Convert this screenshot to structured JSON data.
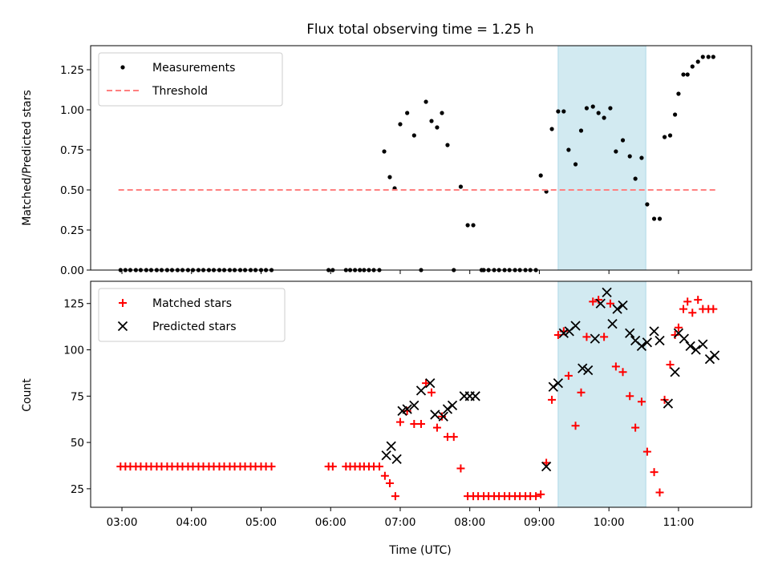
{
  "chart_data": {
    "title": "Flux total observing time = 1.25 h",
    "xlabel": "Time (UTC)",
    "x_ticks": [
      "03:00",
      "04:00",
      "05:00",
      "06:00",
      "07:00",
      "08:00",
      "09:00",
      "10:00",
      "11:00"
    ],
    "x_range_hours": [
      2.55,
      12.05
    ],
    "observing_window_hours": [
      9.27,
      10.53
    ],
    "window_color": "#add8e6",
    "panels": [
      {
        "type": "scatter",
        "ylabel": "Matched/Predicted stars",
        "ylim": [
          0,
          1.4
        ],
        "y_ticks": [
          "0.00",
          "0.25",
          "0.50",
          "0.75",
          "1.00",
          "1.25"
        ],
        "legend": {
          "position": "top-left",
          "entries": [
            "Measurements",
            "Threshold"
          ]
        },
        "series": [
          {
            "name": "Measurements",
            "marker": "dot",
            "color": "#000000",
            "x": [
              2.98,
              3.05,
              3.12,
              3.2,
              3.27,
              3.35,
              3.42,
              3.5,
              3.57,
              3.65,
              3.72,
              3.8,
              3.87,
              3.95,
              4.02,
              4.1,
              4.17,
              4.25,
              4.32,
              4.4,
              4.47,
              4.55,
              4.62,
              4.7,
              4.77,
              4.85,
              4.92,
              5.0,
              5.07,
              5.15,
              5.97,
              6.03,
              6.22,
              6.28,
              6.35,
              6.42,
              6.48,
              6.55,
              6.62,
              6.7,
              6.77,
              6.85,
              6.92,
              7.0,
              7.1,
              7.2,
              7.3,
              7.37,
              7.45,
              7.53,
              7.6,
              7.68,
              7.77,
              7.87,
              7.97,
              8.05,
              8.17,
              8.2,
              8.27,
              8.35,
              8.42,
              8.5,
              8.57,
              8.65,
              8.72,
              8.8,
              8.87,
              8.95,
              9.02,
              9.1,
              9.18,
              9.27,
              9.35,
              9.42,
              9.52,
              9.6,
              9.68,
              9.77,
              9.85,
              9.93,
              10.02,
              10.1,
              10.2,
              10.3,
              10.38,
              10.47,
              10.55,
              10.65,
              10.73,
              10.8,
              10.88,
              10.95,
              11.0,
              11.07,
              11.13,
              11.2,
              11.28,
              11.35,
              11.43,
              11.5
            ],
            "y": [
              0,
              0,
              0,
              0,
              0,
              0,
              0,
              0,
              0,
              0,
              0,
              0,
              0,
              0,
              0,
              0,
              0,
              0,
              0,
              0,
              0,
              0,
              0,
              0,
              0,
              0,
              0,
              0,
              0,
              0,
              0,
              0,
              0,
              0,
              0,
              0,
              0,
              0,
              0,
              0,
              0.74,
              0.58,
              0.51,
              0.91,
              0.98,
              0.84,
              0,
              1.05,
              0.93,
              0.89,
              0.98,
              0.78,
              0,
              0.52,
              0.28,
              0.28,
              0,
              0,
              0,
              0,
              0,
              0,
              0,
              0,
              0,
              0,
              0,
              0,
              0.59,
              0.49,
              0.88,
              0.99,
              0.99,
              0.75,
              0.66,
              0.87,
              1.01,
              1.02,
              0.98,
              0.95,
              1.01,
              0.74,
              0.81,
              0.71,
              0.57,
              0.7,
              0.41,
              0.32,
              0.32,
              0.83,
              0.84,
              0.97,
              1.1,
              1.22,
              1.22,
              1.27,
              1.3,
              1.33,
              1.33,
              1.33
            ]
          },
          {
            "name": "Threshold",
            "marker": "dashed-line",
            "color": "#ff8080",
            "x": [
              2.95,
              11.55
            ],
            "y": [
              0.5,
              0.5
            ]
          }
        ]
      },
      {
        "type": "scatter",
        "ylabel": "Count",
        "ylim": [
          15,
          137
        ],
        "y_ticks": [
          "25",
          "50",
          "75",
          "100",
          "125"
        ],
        "legend": {
          "position": "top-left",
          "entries": [
            "Matched stars",
            "Predicted stars"
          ]
        },
        "series": [
          {
            "name": "Matched stars",
            "marker": "plus",
            "color": "#ff0000",
            "x": [
              2.98,
              3.05,
              3.12,
              3.2,
              3.27,
              3.35,
              3.42,
              3.5,
              3.57,
              3.65,
              3.72,
              3.8,
              3.87,
              3.95,
              4.02,
              4.1,
              4.17,
              4.25,
              4.32,
              4.4,
              4.47,
              4.55,
              4.62,
              4.7,
              4.77,
              4.85,
              4.92,
              5.0,
              5.07,
              5.15,
              5.97,
              6.03,
              6.22,
              6.28,
              6.35,
              6.42,
              6.48,
              6.55,
              6.62,
              6.7,
              6.78,
              6.85,
              6.93,
              7.0,
              7.1,
              7.2,
              7.3,
              7.37,
              7.45,
              7.53,
              7.6,
              7.68,
              7.77,
              7.87,
              7.97,
              8.05,
              8.12,
              8.2,
              8.27,
              8.35,
              8.42,
              8.5,
              8.57,
              8.65,
              8.72,
              8.8,
              8.87,
              8.95,
              9.02,
              9.1,
              9.18,
              9.27,
              9.35,
              9.42,
              9.52,
              9.6,
              9.68,
              9.77,
              9.85,
              9.93,
              10.02,
              10.1,
              10.2,
              10.3,
              10.38,
              10.47,
              10.55,
              10.65,
              10.73,
              10.8,
              10.88,
              10.95,
              11.0,
              11.07,
              11.13,
              11.2,
              11.28,
              11.35,
              11.43,
              11.5
            ],
            "y": [
              37,
              37,
              37,
              37,
              37,
              37,
              37,
              37,
              37,
              37,
              37,
              37,
              37,
              37,
              37,
              37,
              37,
              37,
              37,
              37,
              37,
              37,
              37,
              37,
              37,
              37,
              37,
              37,
              37,
              37,
              37,
              37,
              37,
              37,
              37,
              37,
              37,
              37,
              37,
              37,
              32,
              28,
              21,
              61,
              67,
              60,
              60,
              82,
              77,
              58,
              64,
              53,
              53,
              36,
              21,
              21,
              21,
              21,
              21,
              21,
              21,
              21,
              21,
              21,
              21,
              21,
              21,
              21,
              22,
              39,
              73,
              108,
              110,
              86,
              59,
              77,
              107,
              126,
              127,
              107,
              125,
              91,
              88,
              75,
              58,
              72,
              45,
              34,
              23,
              73,
              92,
              108,
              112,
              122,
              126,
              120,
              127,
              122,
              122,
              122
            ]
          },
          {
            "name": "Predicted stars",
            "marker": "x",
            "color": "#000000",
            "x": [
              6.8,
              6.87,
              6.95,
              7.03,
              7.1,
              7.2,
              7.3,
              7.43,
              7.5,
              7.62,
              7.68,
              7.75,
              7.92,
              8.0,
              8.08,
              9.1,
              9.2,
              9.27,
              9.35,
              9.43,
              9.52,
              9.62,
              9.7,
              9.8,
              9.88,
              9.97,
              10.05,
              10.12,
              10.2,
              10.3,
              10.38,
              10.47,
              10.55,
              10.65,
              10.73,
              10.85,
              10.95,
              11.0,
              11.08,
              11.17,
              11.25,
              11.35,
              11.45,
              11.52
            ],
            "y": [
              43,
              48,
              41,
              67,
              68,
              70,
              78,
              82,
              65,
              64,
              68,
              70,
              75,
              75,
              75,
              37,
              80,
              82,
              109,
              110,
              113,
              90,
              89,
              106,
              125,
              131,
              114,
              122,
              124,
              109,
              105,
              102,
              104,
              110,
              105,
              71,
              88,
              109,
              106,
              102,
              100,
              103,
              95,
              97
            ]
          }
        ]
      }
    ]
  }
}
